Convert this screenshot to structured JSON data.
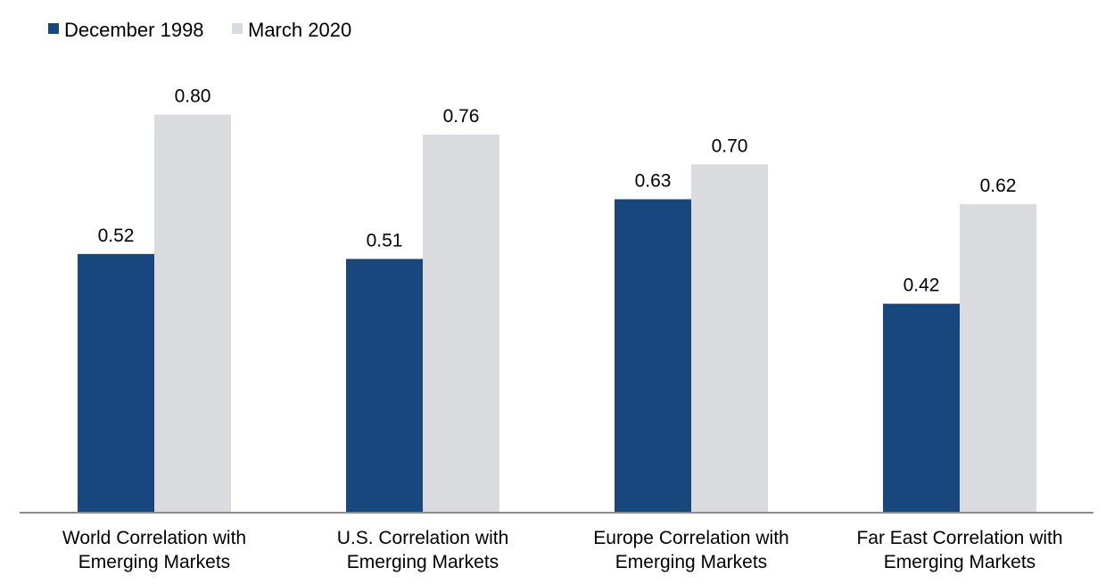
{
  "chart_data": {
    "type": "bar",
    "categories": [
      [
        "World Correlation with",
        "Emerging Markets"
      ],
      [
        "U.S. Correlation with",
        "Emerging Markets"
      ],
      [
        "Europe Correlation with",
        "Emerging Markets"
      ],
      [
        "Far East Correlation with",
        "Emerging Markets"
      ]
    ],
    "series": [
      {
        "name": "December 1998",
        "color": "#17477d",
        "values": [
          0.52,
          0.51,
          0.63,
          0.42
        ],
        "labels": [
          "0.52",
          "0.51",
          "0.63",
          "0.42"
        ]
      },
      {
        "name": "March 2020",
        "color": "#d9dbde",
        "values": [
          0.8,
          0.76,
          0.7,
          0.62
        ],
        "labels": [
          "0.80",
          "0.76",
          "0.70",
          "0.62"
        ]
      }
    ],
    "ylim": [
      0,
      0.9
    ],
    "grid": false,
    "legend_position": "top-left",
    "axis_color": "#8c8c8c"
  }
}
